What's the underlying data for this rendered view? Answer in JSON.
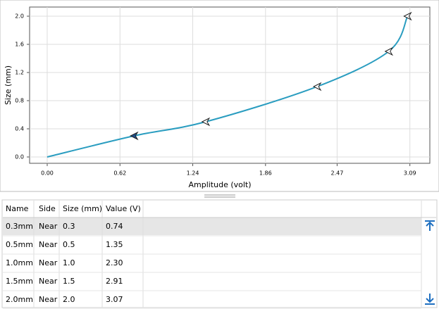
{
  "chart_data": {
    "type": "line",
    "x_label": "Amplitude (volt)",
    "y_label": "Size (mm)",
    "x": [
      0,
      0.74,
      1.35,
      2.3,
      2.91,
      3.07
    ],
    "values": [
      0,
      0.3,
      0.5,
      1.0,
      1.5,
      2.0
    ],
    "color": "#2a9dc0",
    "xlim": [
      -0.15,
      3.26
    ],
    "ylim": [
      -0.09,
      2.13
    ],
    "xticks": [
      {
        "value": 0,
        "label": "0.00"
      },
      0.62,
      1.24,
      1.86,
      2.47,
      3.09
    ],
    "yticks": [
      {
        "value": 0,
        "label": "0.0"
      },
      0.4,
      0.8,
      1.2,
      1.6,
      {
        "value": 2,
        "label": "2.0"
      }
    ],
    "grid": true
  },
  "table": {
    "columns": [
      "Name",
      "Side",
      "Size (mm)",
      "Value (V)"
    ],
    "rows": [
      [
        "0.3mm",
        "Near",
        "0.3",
        "0.74"
      ],
      [
        "0.5mm",
        "Near",
        "0.5",
        "1.35"
      ],
      [
        "1.0mm",
        "Near",
        "1.0",
        "2.30"
      ],
      [
        "1.5mm",
        "Near",
        "1.5",
        "2.91"
      ],
      [
        "2.0mm",
        "Near",
        "2.0",
        "3.07"
      ]
    ]
  }
}
